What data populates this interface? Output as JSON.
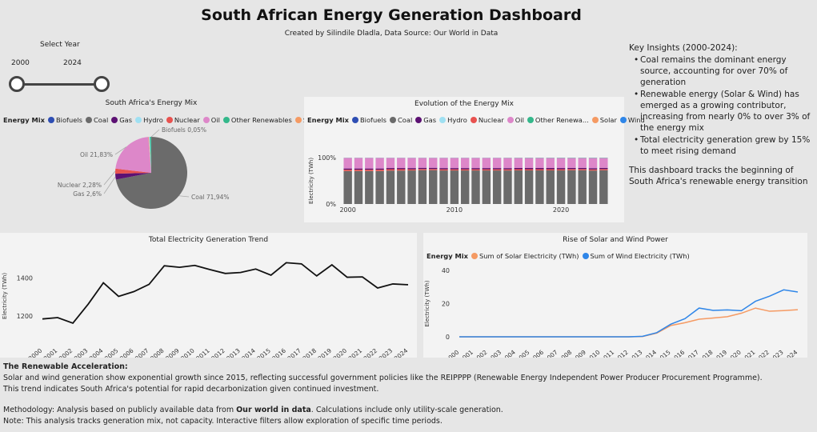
{
  "header": {
    "title": "South African Energy Generation Dashboard",
    "subtitle": "Created by Silindile Dladla, Data Source: Our World in Data"
  },
  "slicer": {
    "title": "Select Year",
    "start": "2000",
    "end": "2024"
  },
  "pie_panel": {
    "title": "South Africa's Energy Mix",
    "legend_label": "Energy Mix",
    "legend_more_icon": "triangle-right-icon"
  },
  "stacked_panel": {
    "title": "Evolution of the Energy Mix",
    "legend_label": "Energy Mix",
    "ylabel": "Electricity (TWh)"
  },
  "trend_panel": {
    "title": "Total Electricity Generation Trend",
    "ylabel": "Electricity (TWh)"
  },
  "solar_panel": {
    "title": "Rise of Solar and Wind Power",
    "legend_label": "Energy Mix",
    "ylabel": "Electricity (TWh)"
  },
  "insights": {
    "heading": "Key Insights (2000-2024):",
    "items": [
      "Coal remains the dominant energy source, accounting for over 70% of generation",
      "Renewable energy (Solar & Wind) has emerged as a growing contributor, increasing from nearly 0% to over 3% of the energy mix",
      "Total electricity generation grew by 15% to meet rising demand"
    ],
    "note": "This dashboard tracks the beginning of South Africa's renewable energy transition"
  },
  "footer": {
    "heading": "The Renewable Acceleration:",
    "line1": "Solar and wind generation show exponential growth since 2015, reflecting successful government policies like the REIPPPP (Renewable Energy Independent Power Producer Procurement Programme).",
    "line2": "This trend indicates South Africa's potential for rapid decarbonization given continued investment.",
    "methodology_prefix": "Methodology: Analysis based on publicly available data from ",
    "methodology_bold": "Our world in data",
    "methodology_suffix": ". Calculations include only utility-scale generation.",
    "note": "Note: This analysis tracks generation mix, not capacity. Interactive filters allow exploration of specific time periods."
  },
  "colors": {
    "Biofuels": "#2e4eb3",
    "Coal": "#6b6b6b",
    "Gas": "#5c1173",
    "Hydro": "#9fe0f2",
    "Nuclear": "#e8524f",
    "Oil": "#dd87c9",
    "Other Renewables": "#34b88b",
    "Solar": "#f59a63",
    "Wind": "#2f86e8"
  },
  "chart_data": [
    {
      "type": "pie",
      "title": "South Africa's Energy Mix",
      "legend": [
        "Biofuels",
        "Coal",
        "Gas",
        "Hydro",
        "Nuclear",
        "Oil",
        "Other Renewables",
        "Solar"
      ],
      "slices": [
        {
          "name": "Coal",
          "value": 71.94,
          "label": "Coal 71,94%"
        },
        {
          "name": "Oil",
          "value": 21.83,
          "label": "Oil 21,83%"
        },
        {
          "name": "Gas",
          "value": 2.6,
          "label": "Gas 2,6%"
        },
        {
          "name": "Nuclear",
          "value": 2.28,
          "label": "Nuclear 2,28%"
        },
        {
          "name": "Other Renewables",
          "value": 0.55,
          "label": ""
        },
        {
          "name": "Hydro",
          "value": 0.45,
          "label": ""
        },
        {
          "name": "Solar",
          "value": 0.3,
          "label": ""
        },
        {
          "name": "Biofuels",
          "value": 0.05,
          "label": "Biofuels 0,05%"
        }
      ]
    },
    {
      "type": "bar",
      "stacked": "percent",
      "title": "Evolution of the Energy Mix",
      "legend": [
        "Biofuels",
        "Coal",
        "Gas",
        "Hydro",
        "Nuclear",
        "Oil",
        "Other Renewa...",
        "Solar",
        "Wind"
      ],
      "x": [
        2000,
        2001,
        2002,
        2003,
        2004,
        2005,
        2006,
        2007,
        2008,
        2009,
        2010,
        2011,
        2012,
        2013,
        2014,
        2015,
        2016,
        2017,
        2018,
        2019,
        2020,
        2021,
        2022,
        2023,
        2024
      ],
      "xticks": [
        "2000",
        "2010",
        "2020"
      ],
      "yticks": [
        "0%",
        "100%"
      ],
      "ylabel": "Electricity (TWh)",
      "series": [
        {
          "name": "Coal",
          "values": [
            71,
            71,
            71,
            71,
            72,
            72,
            72,
            73,
            73,
            72,
            72,
            72,
            72,
            72,
            72,
            72,
            72,
            72,
            72,
            72,
            72,
            72,
            72,
            71,
            72
          ]
        },
        {
          "name": "Nuclear",
          "values": [
            3,
            3,
            3,
            3,
            3,
            3,
            2.5,
            2.5,
            2.5,
            2.5,
            2.5,
            2.5,
            2.5,
            2.5,
            2.5,
            2.5,
            2.5,
            2.5,
            2.5,
            2.5,
            2.5,
            2.5,
            2.5,
            2.5,
            2.5
          ]
        },
        {
          "name": "Gas",
          "values": [
            2.5,
            2.5,
            2.5,
            2.5,
            2.5,
            2.5,
            2.6,
            2.6,
            2.6,
            2.6,
            2.6,
            2.6,
            2.6,
            2.6,
            2.6,
            2.6,
            2.6,
            2.6,
            2.6,
            2.6,
            2.6,
            2.6,
            2.6,
            2.6,
            2.6
          ]
        },
        {
          "name": "Oil",
          "values": [
            23,
            23,
            23,
            23,
            22,
            22,
            22,
            21.5,
            21.5,
            22,
            22,
            22,
            22,
            22,
            22,
            22,
            21.5,
            21.5,
            21.5,
            21.5,
            21.5,
            21,
            21,
            21.5,
            21
          ]
        },
        {
          "name": "Other Renewables",
          "values": [
            0.3,
            0.3,
            0.3,
            0.3,
            0.3,
            0.3,
            0.3,
            0.3,
            0.3,
            0.3,
            0.3,
            0.3,
            0.3,
            0.3,
            0.3,
            0.4,
            0.5,
            0.6,
            0.6,
            0.6,
            0.7,
            0.7,
            0.7,
            0.7,
            0.7
          ]
        },
        {
          "name": "Hydro",
          "values": [
            0.2,
            0.2,
            0.2,
            0.2,
            0.2,
            0.2,
            0.2,
            0.2,
            0.2,
            0.2,
            0.2,
            0.2,
            0.2,
            0.2,
            0.2,
            0.2,
            0.2,
            0.2,
            0.2,
            0.2,
            0.2,
            0.2,
            0.2,
            0.2,
            0.2
          ]
        }
      ]
    },
    {
      "type": "line",
      "title": "Total Electricity Generation Trend",
      "ylabel": "Electricity (TWh)",
      "x": [
        "2000",
        "2001",
        "2002",
        "2003",
        "2004",
        "2005",
        "2006",
        "2007",
        "2008",
        "2009",
        "2010",
        "2011",
        "2012",
        "2013",
        "2014",
        "2015",
        "2016",
        "2017",
        "2018",
        "2019",
        "2020",
        "2021",
        "2022",
        "2023",
        "2024"
      ],
      "yticks": [
        1200,
        1400
      ],
      "ylim": [
        1100,
        1510
      ],
      "series": [
        {
          "name": "Total",
          "values": [
            1185,
            1192,
            1163,
            1262,
            1374,
            1303,
            1328,
            1366,
            1463,
            1455,
            1465,
            1443,
            1423,
            1428,
            1446,
            1414,
            1479,
            1473,
            1410,
            1468,
            1403,
            1405,
            1347,
            1368,
            1364
          ]
        }
      ]
    },
    {
      "type": "line",
      "title": "Rise of Solar and Wind Power",
      "ylabel": "Electricity (TWh)",
      "x": [
        "2000",
        "2001",
        "2002",
        "2003",
        "2004",
        "2005",
        "2006",
        "2007",
        "2008",
        "2009",
        "2010",
        "2011",
        "2012",
        "2013",
        "2014",
        "2015",
        "2016",
        "2017",
        "2018",
        "2019",
        "2020",
        "2021",
        "2022",
        "2023",
        "2024"
      ],
      "yticks": [
        0,
        20,
        40
      ],
      "ylim": [
        0,
        40
      ],
      "series": [
        {
          "name": "Sum of Solar Electricity (TWh)",
          "color": "#f59a63",
          "values": [
            0,
            0,
            0,
            0,
            0,
            0,
            0,
            0,
            0,
            0,
            0,
            0,
            0,
            0.2,
            2.2,
            6.8,
            8.5,
            10.6,
            11.3,
            12.1,
            14.2,
            17.3,
            15.4,
            15.8,
            16.3
          ]
        },
        {
          "name": "Sum of Wind Electricity (TWh)",
          "color": "#2f86e8",
          "values": [
            0,
            0,
            0,
            0,
            0,
            0,
            0,
            0,
            0,
            0,
            0,
            0,
            0,
            0.3,
            2.5,
            7.6,
            10.9,
            17.3,
            15.9,
            16.2,
            15.7,
            21.4,
            24.5,
            28.3,
            27.0
          ]
        }
      ]
    }
  ]
}
